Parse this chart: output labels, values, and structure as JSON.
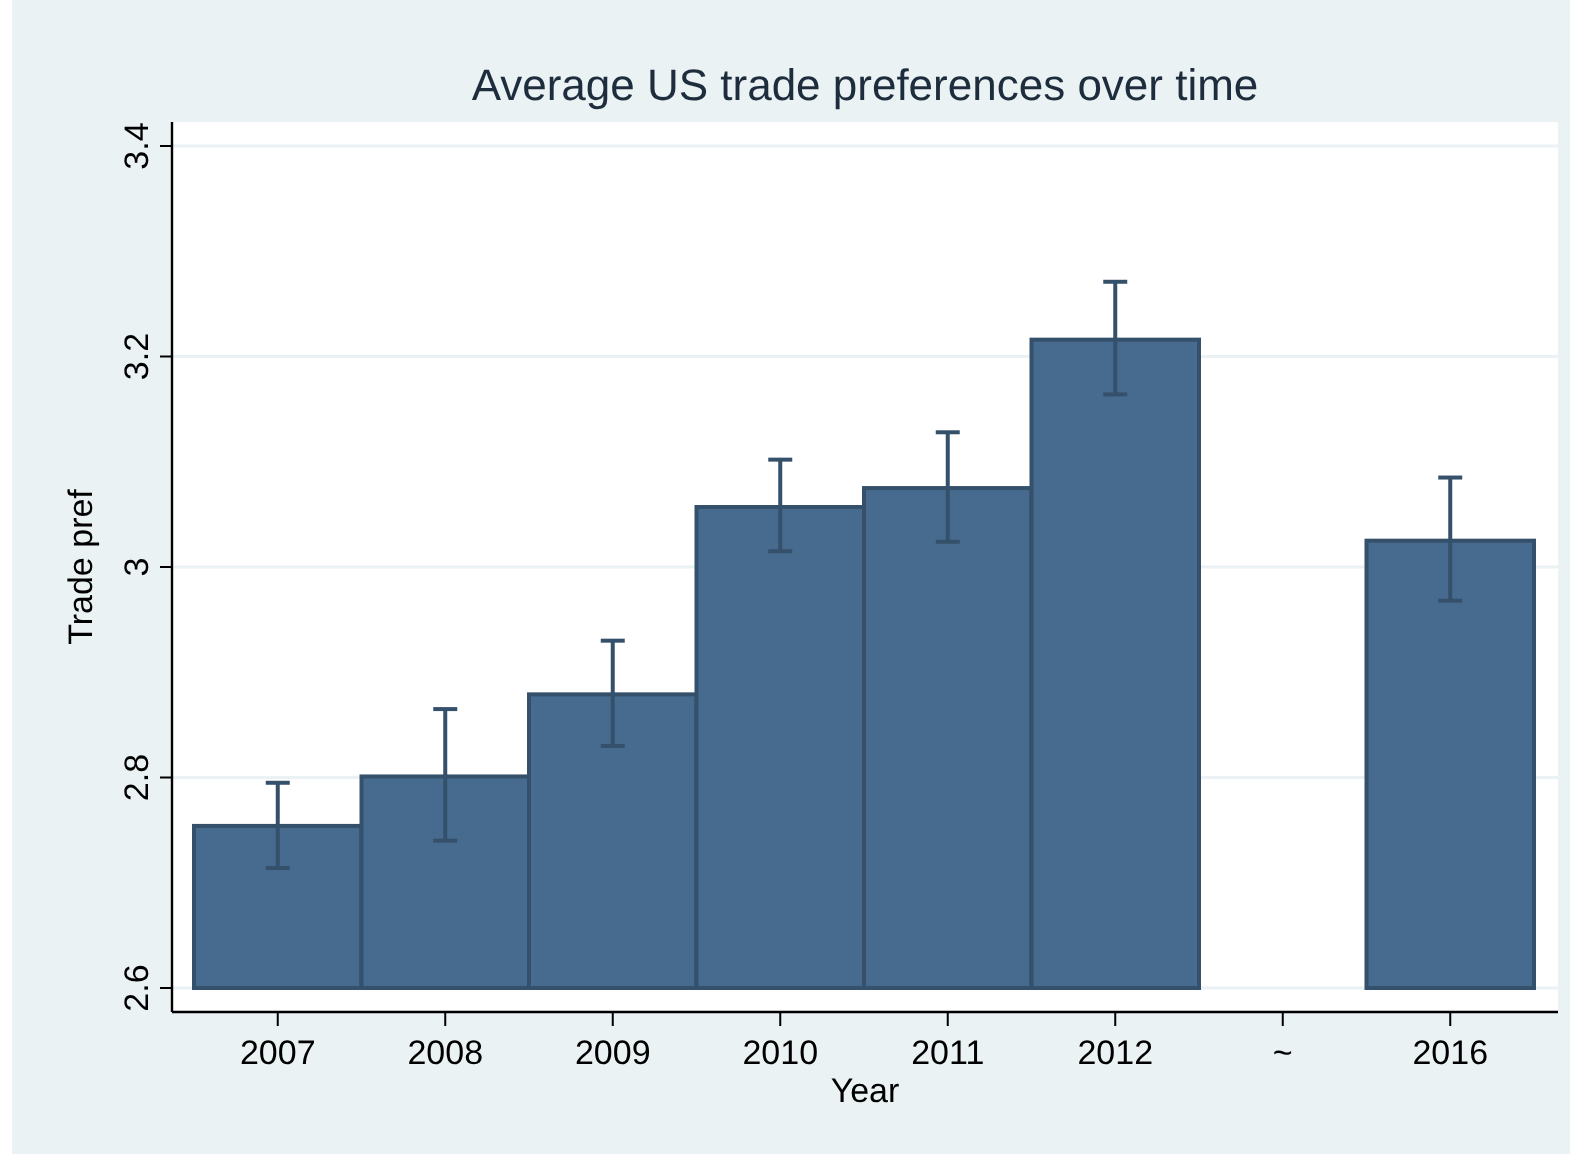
{
  "chart_data": {
    "type": "bar",
    "title": "Average US trade preferences over time",
    "xlabel": "Year",
    "ylabel": "Trade pref",
    "categories": [
      "2007",
      "2008",
      "2009",
      "2010",
      "2011",
      "2012",
      "~",
      "2016"
    ],
    "values": [
      2.754,
      2.801,
      2.879,
      3.057,
      3.075,
      3.216,
      null,
      3.025
    ],
    "errors": [
      [
        2.714,
        2.795
      ],
      [
        2.74,
        2.865
      ],
      [
        2.83,
        2.93
      ],
      [
        3.015,
        3.102
      ],
      [
        3.024,
        3.128
      ],
      [
        3.164,
        3.271
      ],
      null,
      [
        2.968,
        3.085
      ]
    ],
    "color": "#476b8e",
    "ylim": [
      2.6,
      3.4
    ],
    "yticks": [
      2.6,
      2.8,
      3,
      3.2,
      3.4
    ],
    "grid": "y"
  }
}
